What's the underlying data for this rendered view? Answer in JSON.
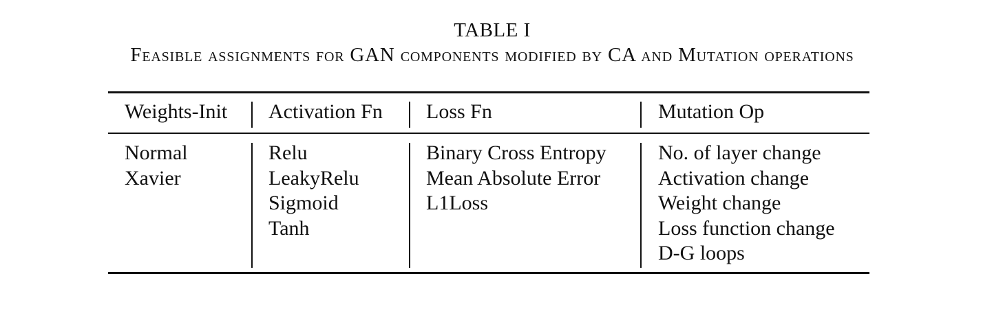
{
  "table": {
    "label": "TABLE I",
    "caption": "Feasible assignments for GAN components modified by CA and Mutation operations",
    "headers": [
      "Weights-Init",
      "Activation Fn",
      "Loss Fn",
      "Mutation Op"
    ],
    "columns": [
      [
        "Normal",
        "Xavier"
      ],
      [
        "Relu",
        "LeakyRelu",
        "Sigmoid",
        "Tanh"
      ],
      [
        "Binary Cross Entropy",
        "Mean Absolute Error",
        "L1Loss"
      ],
      [
        "No. of layer change",
        "Activation change",
        "Weight change",
        "Loss function change",
        "D-G loops"
      ]
    ]
  }
}
